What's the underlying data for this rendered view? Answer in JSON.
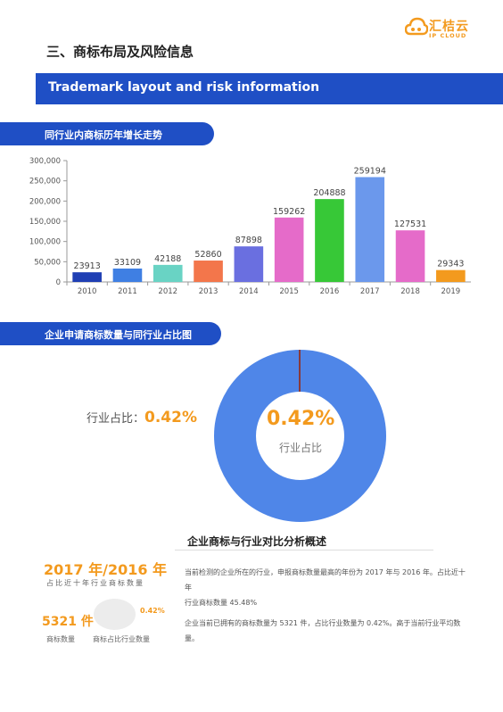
{
  "logo": {
    "cn": "汇桔云",
    "en": "IP CLOUD"
  },
  "section": {
    "title": "三、商标布局及风险信息"
  },
  "banner": {
    "title": "Trademark layout and risk information"
  },
  "pills": {
    "trend": "同行业内商标历年增长走势",
    "ratio": "企业申请商标数量与同行业占比图"
  },
  "chart_data": {
    "type": "bar",
    "categories": [
      "2010",
      "2011",
      "2012",
      "2013",
      "2014",
      "2015",
      "2016",
      "2017",
      "2018",
      "2019"
    ],
    "values": [
      23913,
      33109,
      42188,
      52860,
      87898,
      159262,
      204888,
      259194,
      127531,
      29343
    ],
    "colors": [
      "#1f3fb4",
      "#3f7fe3",
      "#69d3c4",
      "#f3764b",
      "#6a6fe0",
      "#e56bc9",
      "#37c837",
      "#6b98ec",
      "#e56bc9",
      "#f39a1e"
    ],
    "ylim": [
      0,
      300000
    ],
    "yticks": [
      "0",
      "50,000",
      "100,000",
      "150,000",
      "200,000",
      "250,000",
      "300,000"
    ],
    "grid": false
  },
  "donut": {
    "percent": "0.42%",
    "label": "行业占比",
    "share_value": 0.42,
    "colors": {
      "rest": "#4f86e8",
      "share": "#8a3a3a"
    }
  },
  "industry_share": {
    "label": "行业占比：",
    "value": "0.42%"
  },
  "analysis": {
    "title": "企业商标与行业对比分析概述",
    "paragraph1_line1": "当前检测的企业所在的行业，申报商标数量最高的年份为 2017 年与 2016 年。占比近十年",
    "paragraph1_line2": "行业商标数量 45.48%",
    "paragraph2": "企业当前已拥有的商标数量为 5321 件，占比行业数量为 0.42%。高于当前行业平均数量。"
  },
  "stats": {
    "years": "2017 年/2016 年",
    "years_caption": "占比近十年行业商标数量",
    "count": "5321 件",
    "count_label": "商标数量",
    "mini_pct": "0.42%",
    "mini_label": "商标占比行业数量"
  },
  "accent": "#f39a1e",
  "brand": "#1f4fc5"
}
